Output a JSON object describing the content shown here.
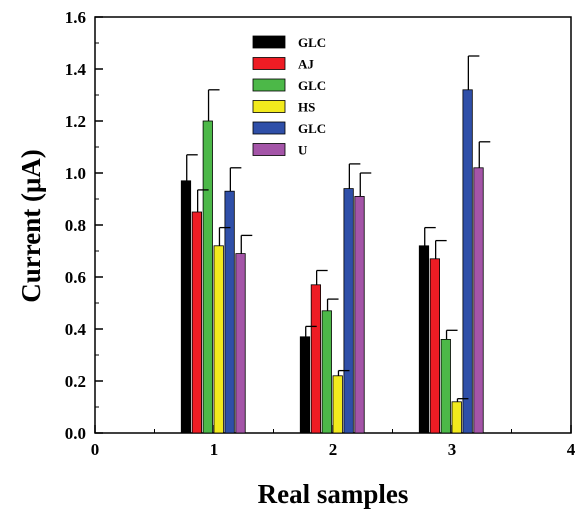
{
  "chart_data": {
    "type": "bar",
    "title": "",
    "xlabel": "Real samples",
    "ylabel": "Current (μA)",
    "xlim": [
      0,
      4
    ],
    "ylim": [
      0,
      1.6
    ],
    "xticks": [
      "0",
      "1",
      "2",
      "3",
      "4"
    ],
    "yticks": [
      "0.0",
      "0.2",
      "0.4",
      "0.6",
      "0.8",
      "1.0",
      "1.2",
      "1.4",
      "1.6"
    ],
    "x": [
      1,
      2,
      3
    ],
    "grid": false,
    "legend_position": "top-center",
    "series": [
      {
        "name": "GLC",
        "color": "#000000",
        "values": [
          0.97,
          0.37,
          0.72
        ],
        "errors": [
          0.1,
          0.04,
          0.07
        ]
      },
      {
        "name": "AJ",
        "color": "#ee1c24",
        "values": [
          0.85,
          0.57,
          0.67
        ],
        "errors": [
          0.085,
          0.055,
          0.07
        ]
      },
      {
        "name": "GLC",
        "color": "#4cb848",
        "values": [
          1.2,
          0.47,
          0.36
        ],
        "errors": [
          0.12,
          0.045,
          0.035
        ]
      },
      {
        "name": "HS",
        "color": "#f2ea1d",
        "values": [
          0.72,
          0.22,
          0.12
        ],
        "errors": [
          0.07,
          0.02,
          0.012
        ]
      },
      {
        "name": "GLC",
        "color": "#2f4fa8",
        "values": [
          0.93,
          0.94,
          1.32
        ],
        "errors": [
          0.09,
          0.095,
          0.13
        ]
      },
      {
        "name": "U",
        "color": "#a455a8",
        "values": [
          0.69,
          0.91,
          1.02
        ],
        "errors": [
          0.07,
          0.09,
          0.1
        ]
      }
    ]
  }
}
